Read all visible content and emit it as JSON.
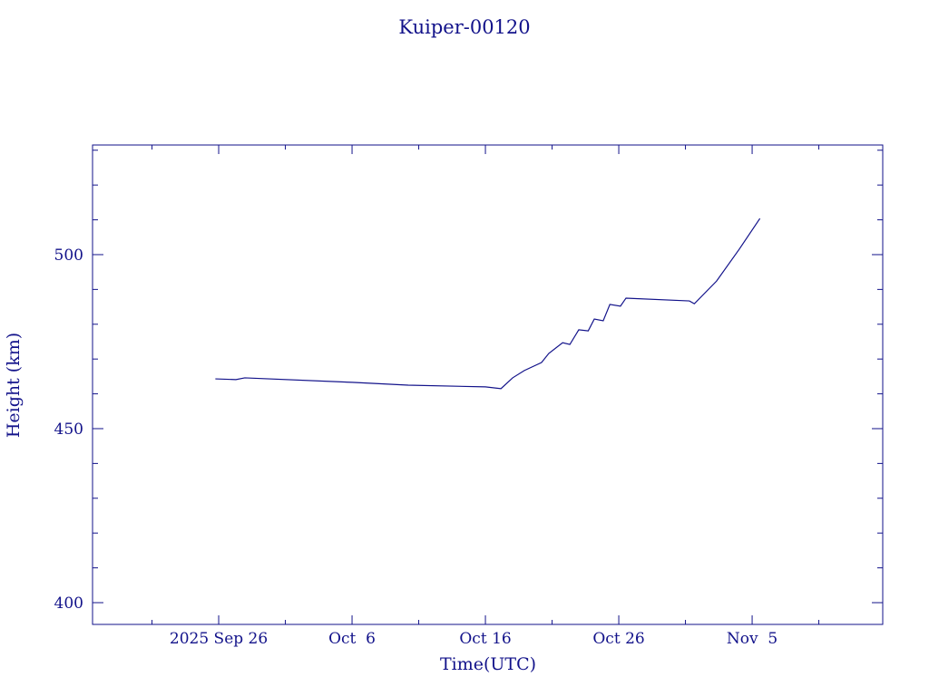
{
  "chart_data": {
    "type": "line",
    "title": "Kuiper-00120",
    "x_label": "Time(UTC)",
    "y_label": "Height (km)",
    "color": "#12128a",
    "xlim": [
      "2025-09-16T13:00Z",
      "2025-11-14T19:00Z"
    ],
    "xticks": [
      {
        "value": "2025-09-26T00:00Z",
        "label": "2025 Sep 26"
      },
      {
        "value": "2025-10-06T00:00Z",
        "label": "Oct  6"
      },
      {
        "value": "2025-10-16T00:00Z",
        "label": "Oct 16"
      },
      {
        "value": "2025-10-26T00:00Z",
        "label": "Oct 26"
      },
      {
        "value": "2025-11-05T00:00Z",
        "label": "Nov  5"
      }
    ],
    "xminor_ticks": [
      "2025-09-21T00:00Z",
      "2025-10-01T00:00Z",
      "2025-10-11T00:00Z",
      "2025-10-21T00:00Z",
      "2025-10-31T00:00Z",
      "2025-11-10T00:00Z"
    ],
    "ylim": [
      393.75,
      531.5
    ],
    "yticks": [
      400,
      450,
      500
    ],
    "yminor_ticks": [
      410,
      420,
      430,
      440,
      460,
      470,
      480,
      490,
      510,
      520,
      530
    ],
    "x": [
      "2025-09-25T18:00Z",
      "2025-09-27T07:00Z",
      "2025-09-27T23:00Z",
      "2025-10-06T00:00Z",
      "2025-10-10T05:00Z",
      "2025-10-16T00:00Z",
      "2025-10-17T04:00Z",
      "2025-10-18T01:00Z",
      "2025-10-18T22:00Z",
      "2025-10-20T05:00Z",
      "2025-10-20T18:00Z",
      "2025-10-21T19:00Z",
      "2025-10-22T08:00Z",
      "2025-10-23T00:00Z",
      "2025-10-23T17:00Z",
      "2025-10-24T04:00Z",
      "2025-10-24T20:00Z",
      "2025-10-25T08:00Z",
      "2025-10-26T03:00Z",
      "2025-10-26T13:00Z",
      "2025-10-31T07:00Z",
      "2025-10-31T16:00Z",
      "2025-11-01T08:00Z",
      "2025-11-02T08:00Z",
      "2025-11-04T01:00Z",
      "2025-11-05T14:00Z"
    ],
    "values": [
      464.3,
      464.1,
      464.6,
      463.3,
      462.5,
      462.0,
      461.5,
      464.6,
      466.7,
      469.0,
      471.6,
      474.7,
      474.2,
      478.4,
      478.1,
      481.5,
      481.0,
      485.7,
      485.2,
      487.5,
      486.7,
      485.9,
      488.5,
      492.4,
      501.6,
      510.4
    ]
  }
}
